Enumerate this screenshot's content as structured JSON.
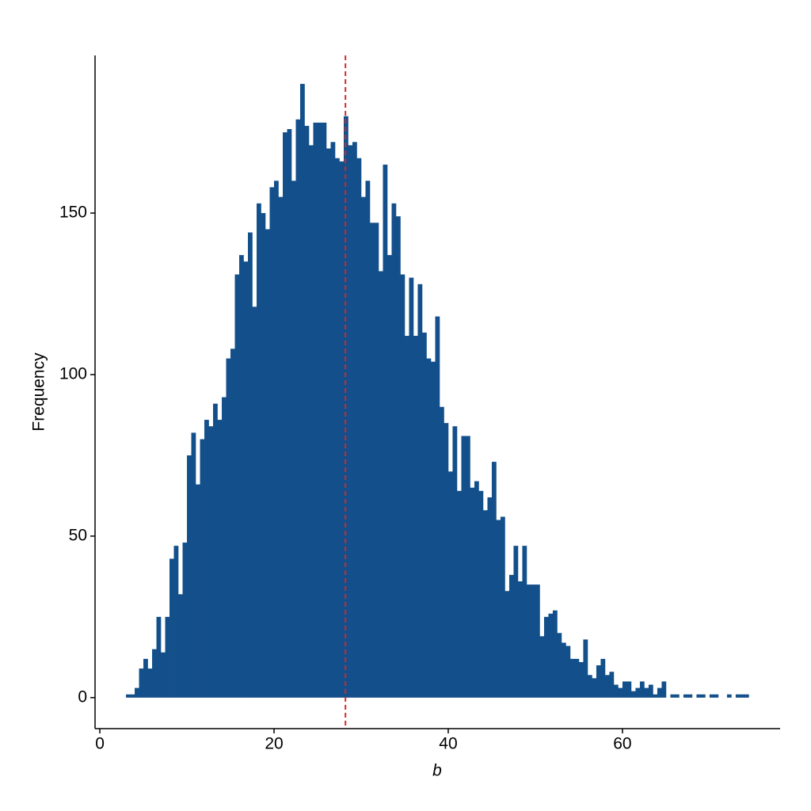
{
  "chart_data": {
    "type": "histogram",
    "x_label": "b",
    "y_label": "Frequency",
    "bins": [
      3,
      3.5,
      4,
      4.5,
      5,
      5.5,
      6,
      6.5,
      7,
      7.5,
      8,
      8.5,
      9,
      9.5,
      10,
      10.5,
      11,
      11.5,
      12,
      12.5,
      13,
      13.5,
      14,
      14.5,
      15,
      15.5,
      16,
      16.5,
      17,
      17.5,
      18,
      18.5,
      19,
      19.5,
      20,
      20.5,
      21,
      21.5,
      22,
      22.5,
      23,
      23.5,
      24,
      24.5,
      25,
      25.5,
      26,
      26.5,
      27,
      27.5,
      28,
      28.5,
      29,
      29.5,
      30,
      30.5,
      31,
      31.5,
      32,
      32.5,
      33,
      33.5,
      34,
      34.5,
      35,
      35.5,
      36,
      36.5,
      37,
      37.5,
      38,
      38.5,
      39,
      39.5,
      40,
      40.5,
      41,
      41.5,
      42,
      42.5,
      43,
      43.5,
      44,
      44.5,
      45,
      45.5,
      46,
      46.5,
      47,
      47.5,
      48,
      48.5,
      49,
      49.5,
      50,
      50.5,
      51,
      51.5,
      52,
      52.5,
      53,
      53.5,
      54,
      54.5,
      55,
      55.5,
      56,
      56.5,
      57,
      57.5,
      58,
      58.5,
      59,
      59.5,
      60,
      60.5,
      61,
      61.5,
      62,
      62.5,
      63,
      63.5,
      64,
      64.5,
      65,
      65.5,
      66,
      66.5,
      67,
      67.5,
      68,
      68.5,
      69,
      69.5,
      70,
      70.5,
      71,
      71.5,
      72,
      72.5,
      73,
      73.5,
      74,
      74.5
    ],
    "values": [
      1,
      1,
      3,
      9,
      12,
      9,
      15,
      25,
      14,
      25,
      43,
      47,
      32,
      48,
      75,
      82,
      66,
      80,
      86,
      84,
      91,
      86,
      93,
      105,
      108,
      131,
      137,
      135,
      144,
      121,
      153,
      150,
      145,
      158,
      160,
      155,
      175,
      176,
      160,
      179,
      190,
      177,
      171,
      178,
      178,
      178,
      170,
      172,
      167,
      166,
      180,
      171,
      172,
      167,
      155,
      160,
      147,
      147,
      132,
      165,
      137,
      153,
      149,
      131,
      112,
      130,
      112,
      128,
      113,
      105,
      104,
      118,
      90,
      85,
      70,
      84,
      64,
      81,
      81,
      65,
      67,
      64,
      58,
      62,
      73,
      55,
      56,
      33,
      38,
      47,
      36,
      47,
      35,
      35,
      35,
      19,
      25,
      26,
      27,
      20,
      17,
      16,
      12,
      12,
      11,
      18,
      7,
      6,
      10,
      12,
      7,
      8,
      4,
      3,
      5,
      5,
      2,
      3,
      5,
      3,
      4,
      1,
      3,
      5,
      0,
      1,
      1,
      0,
      1,
      1,
      0,
      1,
      1,
      0,
      1,
      1,
      0,
      0,
      1,
      0,
      1,
      1,
      1
    ],
    "color": "#134f8a",
    "vline": 28.2,
    "vline_color": "#d62728",
    "xlim": [
      -0.55,
      78.1
    ],
    "xticks": [
      0,
      20,
      40,
      60
    ],
    "ylim": [
      -9.6,
      198.8
    ],
    "yticks": [
      0,
      50,
      100,
      150
    ],
    "grid": false
  }
}
